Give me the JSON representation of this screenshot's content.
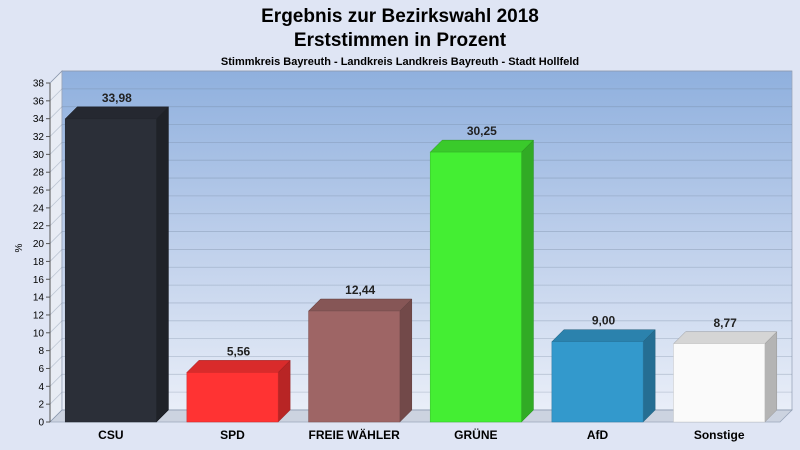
{
  "chart_data": {
    "type": "bar",
    "title": "Ergebnis zur Bezirkswahl 2018",
    "title2": "Erststimmen in Prozent",
    "subtitle": "Stimmkreis Bayreuth - Landkreis Landkreis Bayreuth - Stadt Hollfeld",
    "ylabel": "%",
    "ylim": [
      0,
      38
    ],
    "ytick_step": 2,
    "grid": true,
    "categories": [
      "CSU",
      "SPD",
      "FREIE WÄHLER",
      "GRÜNE",
      "AfD",
      "Sonstige"
    ],
    "values": [
      33.98,
      5.56,
      12.44,
      30.25,
      9.0,
      8.77
    ],
    "value_labels": [
      "33,98",
      "5,56",
      "12,44",
      "30,25",
      "9,00",
      "8,77"
    ],
    "colors": [
      "#2b2f38",
      "#ff3333",
      "#9e6565",
      "#44ee33",
      "#3399cc",
      "#fafafa"
    ]
  }
}
